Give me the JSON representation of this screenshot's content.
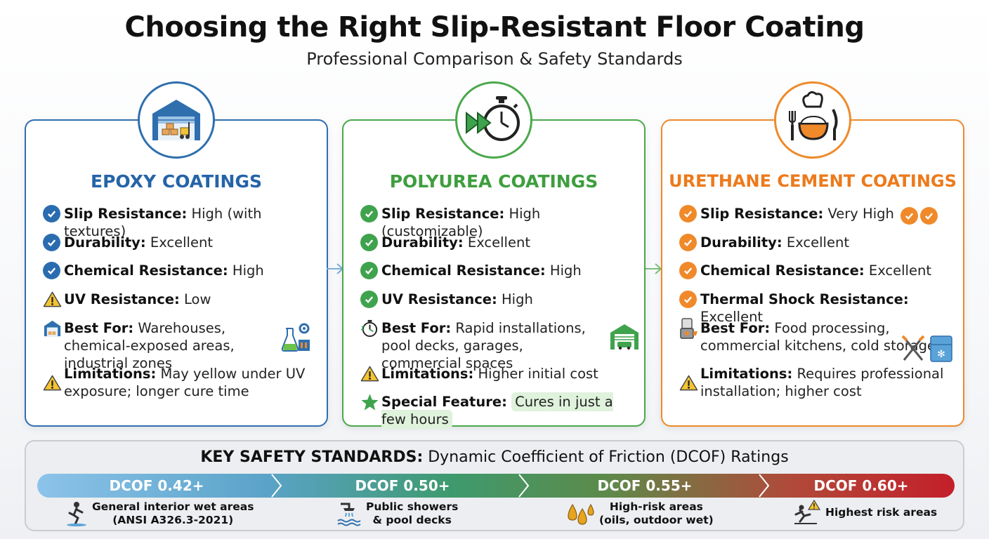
{
  "header": {
    "title": "Choosing the Right Slip-Resistant Floor Coating",
    "subtitle": "Professional Comparison & Safety Standards"
  },
  "colors": {
    "epoxy": "#2f6fae",
    "polyurea": "#4aa84a",
    "urethane": "#ee8a2a"
  },
  "cards": [
    {
      "title": "EPOXY COATINGS",
      "icon": "warehouse-icon",
      "rows": [
        {
          "icon": "check-icon",
          "label": "Slip Resistance:",
          "value": " High (with textures)"
        },
        {
          "icon": "check-icon",
          "label": "Durability:",
          "value": " Excellent"
        },
        {
          "icon": "check-icon",
          "label": "Chemical Resistance:",
          "value": " High"
        },
        {
          "icon": "warning-icon",
          "label": "UV Resistance:",
          "value": " Low"
        },
        {
          "icon": "warehouse-icon",
          "label": "Best For:",
          "value": " Warehouses, chemical-exposed areas, industrial zones"
        },
        {
          "icon": "warning-icon",
          "label": "Limitations:",
          "value": " May yellow under UV exposure; longer cure time"
        }
      ]
    },
    {
      "title": "POLYUREA COATINGS",
      "icon": "fast-forward-stopwatch-icon",
      "rows": [
        {
          "icon": "check-icon",
          "label": "Slip Resistance:",
          "value": " High (customizable)"
        },
        {
          "icon": "check-icon",
          "label": "Durability:",
          "value": " Excellent"
        },
        {
          "icon": "check-icon",
          "label": "Chemical Resistance:",
          "value": " High"
        },
        {
          "icon": "check-icon",
          "label": "UV Resistance:",
          "value": " High"
        },
        {
          "icon": "stopwatch-icon",
          "label": "Best For:",
          "value": " Rapid installations, pool decks, garages, commercial spaces"
        },
        {
          "icon": "warning-icon",
          "label": "Limitations:",
          "value": " Higher initial cost"
        },
        {
          "icon": "star-icon",
          "label": "Special Feature:",
          "value": "Cures in just a few hours"
        }
      ]
    },
    {
      "title": "URETHANE CEMENT COATINGS",
      "icon": "chef-plate-icon",
      "rows": [
        {
          "icon": "check-icon",
          "label": "Slip Resistance:",
          "value": " Very High"
        },
        {
          "icon": "check-icon",
          "label": "Durability:",
          "value": " Excellent"
        },
        {
          "icon": "check-icon",
          "label": "Chemical Resistance:",
          "value": " Excellent"
        },
        {
          "icon": "check-icon",
          "label": "Thermal Shock Resistance:",
          "value": " Excellent"
        },
        {
          "icon": "food-processor-icon",
          "label": "Best For:",
          "value": " Food processing, commercial kitchens, cold storage"
        },
        {
          "icon": "warning-icon",
          "label": "Limitations:",
          "value": " Requires professional installation; higher cost"
        }
      ]
    }
  ],
  "safety": {
    "title_bold": "KEY SAFETY STANDARDS:",
    "title_rest": " Dynamic Coefficient of Friction (DCOF) Ratings",
    "levels": [
      {
        "rating": "DCOF 0.42+",
        "line1": "General interior wet areas",
        "line2": "(ANSI A326.3-2021)",
        "icon": "wet-floor-person-icon"
      },
      {
        "rating": "DCOF 0.50+",
        "line1": "Public showers",
        "line2": "& pool decks",
        "icon": "shower-icon"
      },
      {
        "rating": "DCOF 0.55+",
        "line1": "High-risk areas",
        "line2": "(oils, outdoor wet)",
        "icon": "oil-drops-icon"
      },
      {
        "rating": "DCOF 0.60+",
        "line1": "Highest risk areas",
        "line2": "",
        "icon": "slip-warning-icon"
      }
    ]
  }
}
